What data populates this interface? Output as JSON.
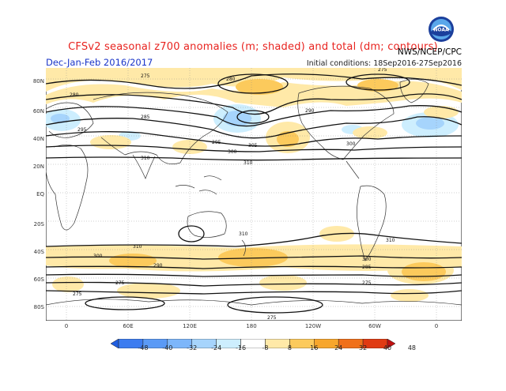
{
  "header": {
    "title": "CFSv2 seasonal z700 anomalies (m; shaded) and total (dm; contours)",
    "season": "Dec-Jan-Feb 2016/2017",
    "organization": "NWS/NCEP/CPC",
    "initial_conditions": "Initial conditions: 18Sep2016-27Sep2016",
    "logo_text": "NOAA"
  },
  "map": {
    "lat_labels": [
      "80N",
      "60N",
      "40N",
      "20N",
      "EQ",
      "20S",
      "40S",
      "60S",
      "80S"
    ],
    "lon_labels": [
      "0",
      "60E",
      "120E",
      "180",
      "120W",
      "60W",
      "0"
    ],
    "contour_labels": [
      "275",
      "280",
      "285",
      "290",
      "295",
      "300",
      "305",
      "310"
    ]
  },
  "colorbar": {
    "labels": [
      "-48",
      "-40",
      "-32",
      "-24",
      "-16",
      "-8",
      "8",
      "16",
      "24",
      "32",
      "40",
      "48"
    ],
    "colors": [
      "#1f5ee0",
      "#3c7cf0",
      "#5a9af6",
      "#7db6fa",
      "#a6d4fc",
      "#cdeefe",
      "#ffffff",
      "#ffe9a8",
      "#fcca5c",
      "#f7a62c",
      "#f0701a",
      "#e03a12",
      "#c01010"
    ]
  }
}
